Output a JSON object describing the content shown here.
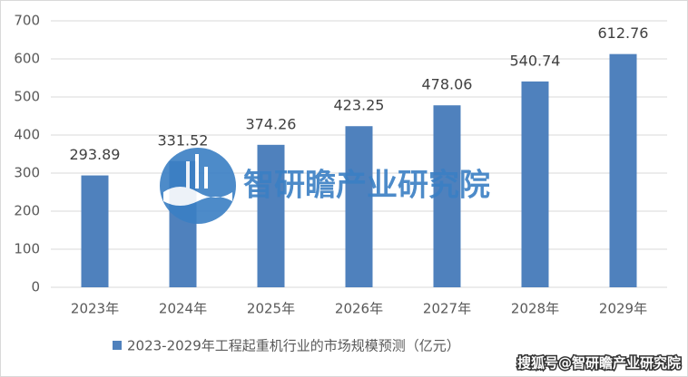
{
  "chart_data": {
    "type": "bar",
    "categories": [
      "2023年",
      "2024年",
      "2025年",
      "2026年",
      "2027年",
      "2028年",
      "2029年"
    ],
    "series": [
      {
        "name": "2023-2029年工程起重机行业的市场规模预测（亿元）",
        "color": "#4f81bd",
        "values": [
          293.89,
          331.52,
          374.26,
          423.25,
          478.06,
          540.74,
          612.76
        ]
      }
    ],
    "ylim": [
      0,
      700
    ],
    "yticks": [
      0,
      100,
      200,
      300,
      400,
      500,
      600,
      700
    ],
    "grid": true,
    "legend": "bottom",
    "annotations": [
      "智研瞻产业研究院",
      "搜狐号@智研瞻产业研究院"
    ]
  }
}
